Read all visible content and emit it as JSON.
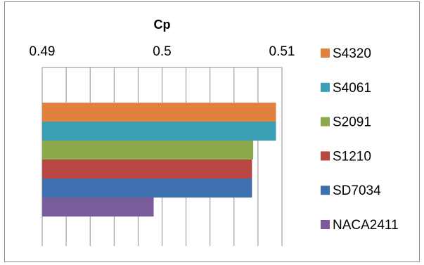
{
  "chart_data": {
    "type": "bar",
    "orientation": "horizontal",
    "title": "",
    "xlabel": "Cp",
    "ylabel": "",
    "xlim": [
      0.49,
      0.51
    ],
    "x_ticks": [
      "0.49",
      "0.5",
      "0.51"
    ],
    "x_minor_step": 0.002,
    "axis_position": "top",
    "grid": true,
    "legend_position": "right",
    "series": [
      {
        "name": "S4320",
        "value": 0.5095,
        "color": "#E0823D"
      },
      {
        "name": "S4061",
        "value": 0.5095,
        "color": "#3BA0B5"
      },
      {
        "name": "S2091",
        "value": 0.5076,
        "color": "#8CAA4B"
      },
      {
        "name": "S1210",
        "value": 0.5075,
        "color": "#B84642"
      },
      {
        "name": "SD7034",
        "value": 0.5075,
        "color": "#3E6FAE"
      },
      {
        "name": "NACA2411",
        "value": 0.4993,
        "color": "#7A5C9A"
      }
    ]
  }
}
